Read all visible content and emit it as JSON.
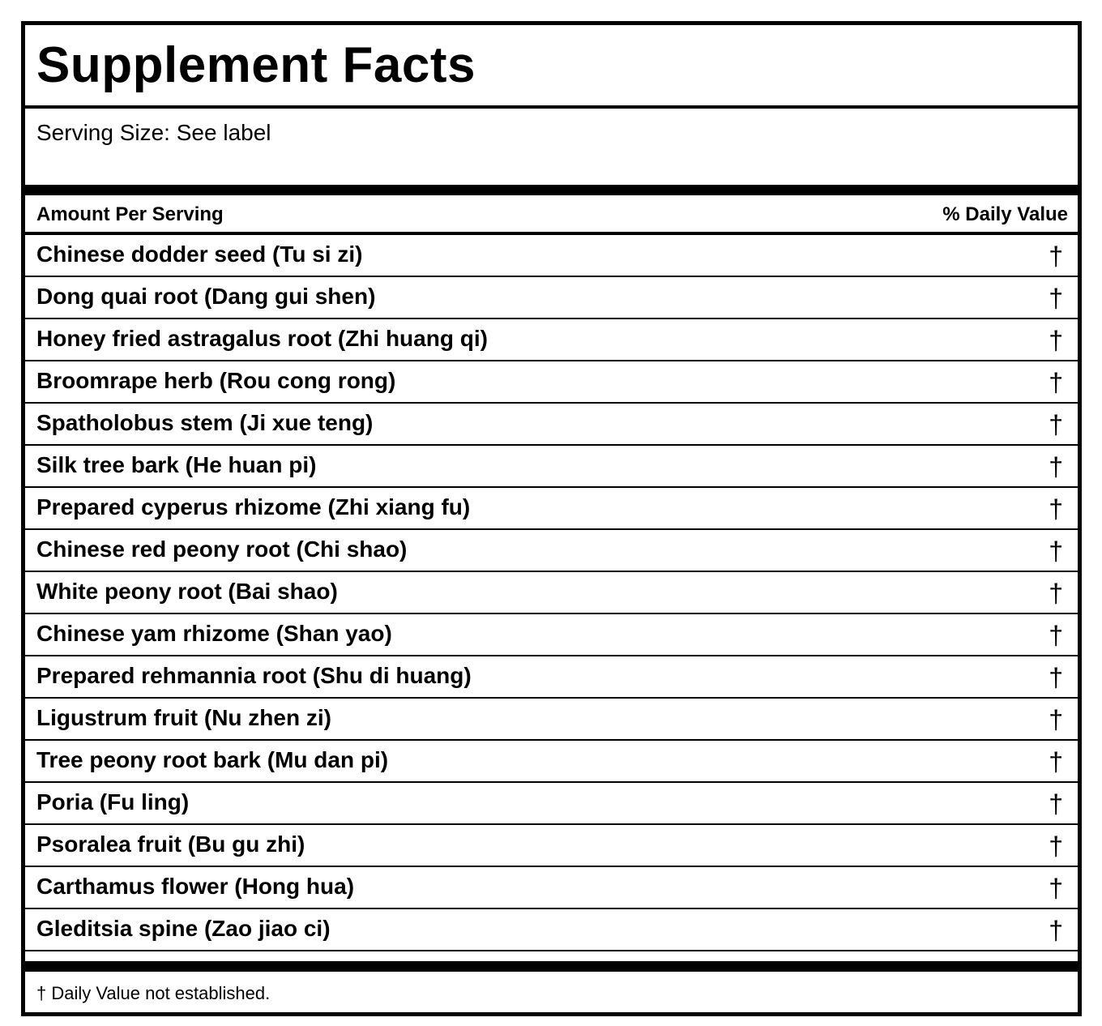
{
  "title": "Supplement Facts",
  "serving_size": "Serving Size: See label",
  "header": {
    "amount_label": "Amount Per Serving",
    "daily_value_label": "% Daily Value"
  },
  "ingredients": [
    {
      "name": "Chinese dodder seed (Tu si zi)",
      "dv": "†"
    },
    {
      "name": "Dong quai root (Dang gui shen)",
      "dv": "†"
    },
    {
      "name": "Honey fried astragalus root (Zhi huang qi)",
      "dv": "†"
    },
    {
      "name": "Broomrape herb (Rou cong rong)",
      "dv": "†"
    },
    {
      "name": "Spatholobus stem (Ji xue teng)",
      "dv": "†"
    },
    {
      "name": "Silk tree bark (He huan pi)",
      "dv": "†"
    },
    {
      "name": "Prepared cyperus rhizome (Zhi xiang fu)",
      "dv": "†"
    },
    {
      "name": "Chinese red peony root (Chi shao)",
      "dv": "†"
    },
    {
      "name": "White peony root (Bai shao)",
      "dv": "†"
    },
    {
      "name": "Chinese yam rhizome (Shan yao)",
      "dv": "†"
    },
    {
      "name": "Prepared rehmannia root (Shu di huang)",
      "dv": "†"
    },
    {
      "name": "Ligustrum fruit (Nu zhen zi)",
      "dv": "†"
    },
    {
      "name": "Tree peony root bark (Mu dan pi)",
      "dv": "†"
    },
    {
      "name": "Poria (Fu ling)",
      "dv": "†"
    },
    {
      "name": "Psoralea fruit (Bu gu zhi)",
      "dv": "†"
    },
    {
      "name": "Carthamus flower (Hong hua)",
      "dv": "†"
    },
    {
      "name": "Gleditsia spine (Zao jiao ci)",
      "dv": "†"
    }
  ],
  "footnote": "† Daily Value not established."
}
